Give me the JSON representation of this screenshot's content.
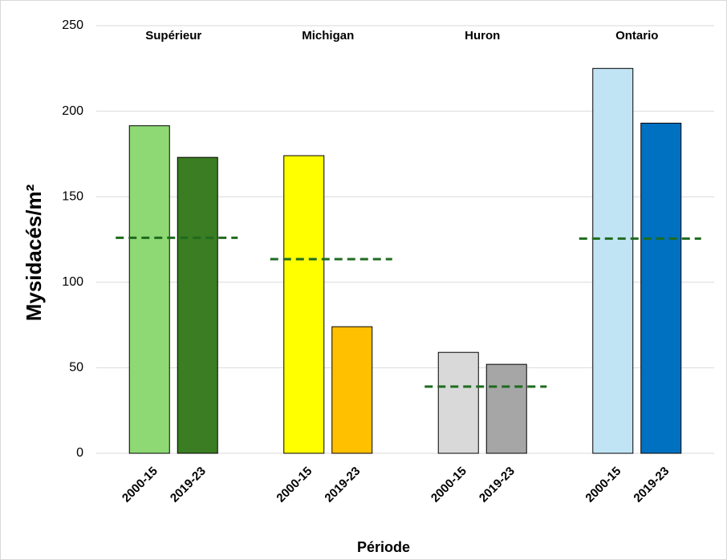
{
  "chart_data": {
    "type": "bar",
    "y_label": "Mysidacés/m²",
    "x_label": "Période",
    "groups": [
      {
        "name": "Supérieur",
        "categories": [
          "2000-15",
          "2019-23"
        ],
        "values": [
          191.5,
          173
        ],
        "colors": [
          "#8ed973",
          "#3a7d22"
        ],
        "reference": 126
      },
      {
        "name": "Michigan",
        "categories": [
          "2000-15",
          "2019-23"
        ],
        "values": [
          174,
          74
        ],
        "colors": [
          "#ffff00",
          "#ffc000"
        ],
        "reference": 113.5
      },
      {
        "name": "Huron",
        "categories": [
          "2000-15",
          "2019-23"
        ],
        "values": [
          59,
          52
        ],
        "colors": [
          "#d9d9d9",
          "#a6a6a6"
        ],
        "reference": 39
      },
      {
        "name": "Ontario",
        "categories": [
          "2000-15",
          "2019-23"
        ],
        "values": [
          225,
          193
        ],
        "colors": [
          "#c1e4f5",
          "#0070c0"
        ],
        "reference": 125.5
      }
    ],
    "reference_color": "#1f6b1f",
    "ylim": [
      0,
      250
    ],
    "yticks": [
      0,
      50,
      100,
      150,
      200,
      250
    ],
    "grid": true
  }
}
